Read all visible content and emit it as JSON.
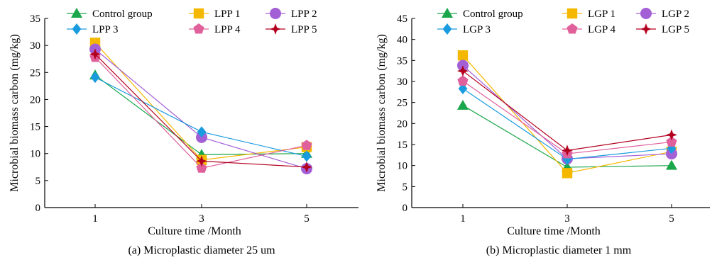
{
  "chart_data": [
    {
      "type": "line",
      "caption": "(a) Microplastic diameter 25 um",
      "xlabel": "Culture time /Month",
      "ylabel": "Microbial biomass carbon (mg/kg)",
      "x": [
        1,
        3,
        5
      ],
      "x_tick_labels": [
        "1",
        "3",
        "5"
      ],
      "ylim": [
        0,
        35
      ],
      "y_ticks": [
        0,
        5,
        10,
        15,
        20,
        25,
        30,
        35
      ],
      "grid": false,
      "legend_position": "top",
      "series": [
        {
          "name": "Control group",
          "marker": "triangle",
          "color": "#1aa64a",
          "values": [
            24.5,
            9.8,
            10.0
          ]
        },
        {
          "name": "LPP 1",
          "marker": "square",
          "color": "#f5b800",
          "values": [
            30.5,
            8.8,
            11.2
          ]
        },
        {
          "name": "LPP 2",
          "marker": "circle",
          "color": "#a35fd6",
          "values": [
            29.3,
            13.0,
            7.2
          ]
        },
        {
          "name": "LPP 3",
          "marker": "diamond",
          "color": "#1a9be0",
          "values": [
            24.1,
            14.0,
            9.5
          ]
        },
        {
          "name": "LPP 4",
          "marker": "pentagon",
          "color": "#e0609b",
          "values": [
            27.8,
            7.3,
            11.5
          ]
        },
        {
          "name": "LPP 5",
          "marker": "star",
          "color": "#b3001e",
          "values": [
            28.4,
            8.6,
            7.5
          ]
        }
      ]
    },
    {
      "type": "line",
      "caption": "(b) Microplastic diameter 1 mm",
      "xlabel": "Culture time /Month",
      "ylabel": "Microbial biomass carbon (mg/kg)",
      "x": [
        1,
        3,
        5
      ],
      "x_tick_labels": [
        "1",
        "3",
        "5"
      ],
      "ylim": [
        0,
        45
      ],
      "y_ticks": [
        0,
        5,
        10,
        15,
        20,
        25,
        30,
        35,
        40,
        45
      ],
      "grid": false,
      "legend_position": "top",
      "series": [
        {
          "name": "Control group",
          "marker": "triangle",
          "color": "#1aa64a",
          "values": [
            24.3,
            9.6,
            10.0
          ]
        },
        {
          "name": "LGP 1",
          "marker": "square",
          "color": "#f5b800",
          "values": [
            36.2,
            8.2,
            13.3
          ]
        },
        {
          "name": "LGP 2",
          "marker": "circle",
          "color": "#a35fd6",
          "values": [
            33.8,
            11.6,
            12.8
          ]
        },
        {
          "name": "LGP 3",
          "marker": "diamond",
          "color": "#1a9be0",
          "values": [
            28.3,
            11.5,
            14.1
          ]
        },
        {
          "name": "LGP 4",
          "marker": "pentagon",
          "color": "#e0609b",
          "values": [
            30.1,
            12.8,
            15.6
          ]
        },
        {
          "name": "LGP 5",
          "marker": "star",
          "color": "#b3001e",
          "values": [
            32.5,
            13.6,
            17.3
          ]
        }
      ]
    }
  ]
}
